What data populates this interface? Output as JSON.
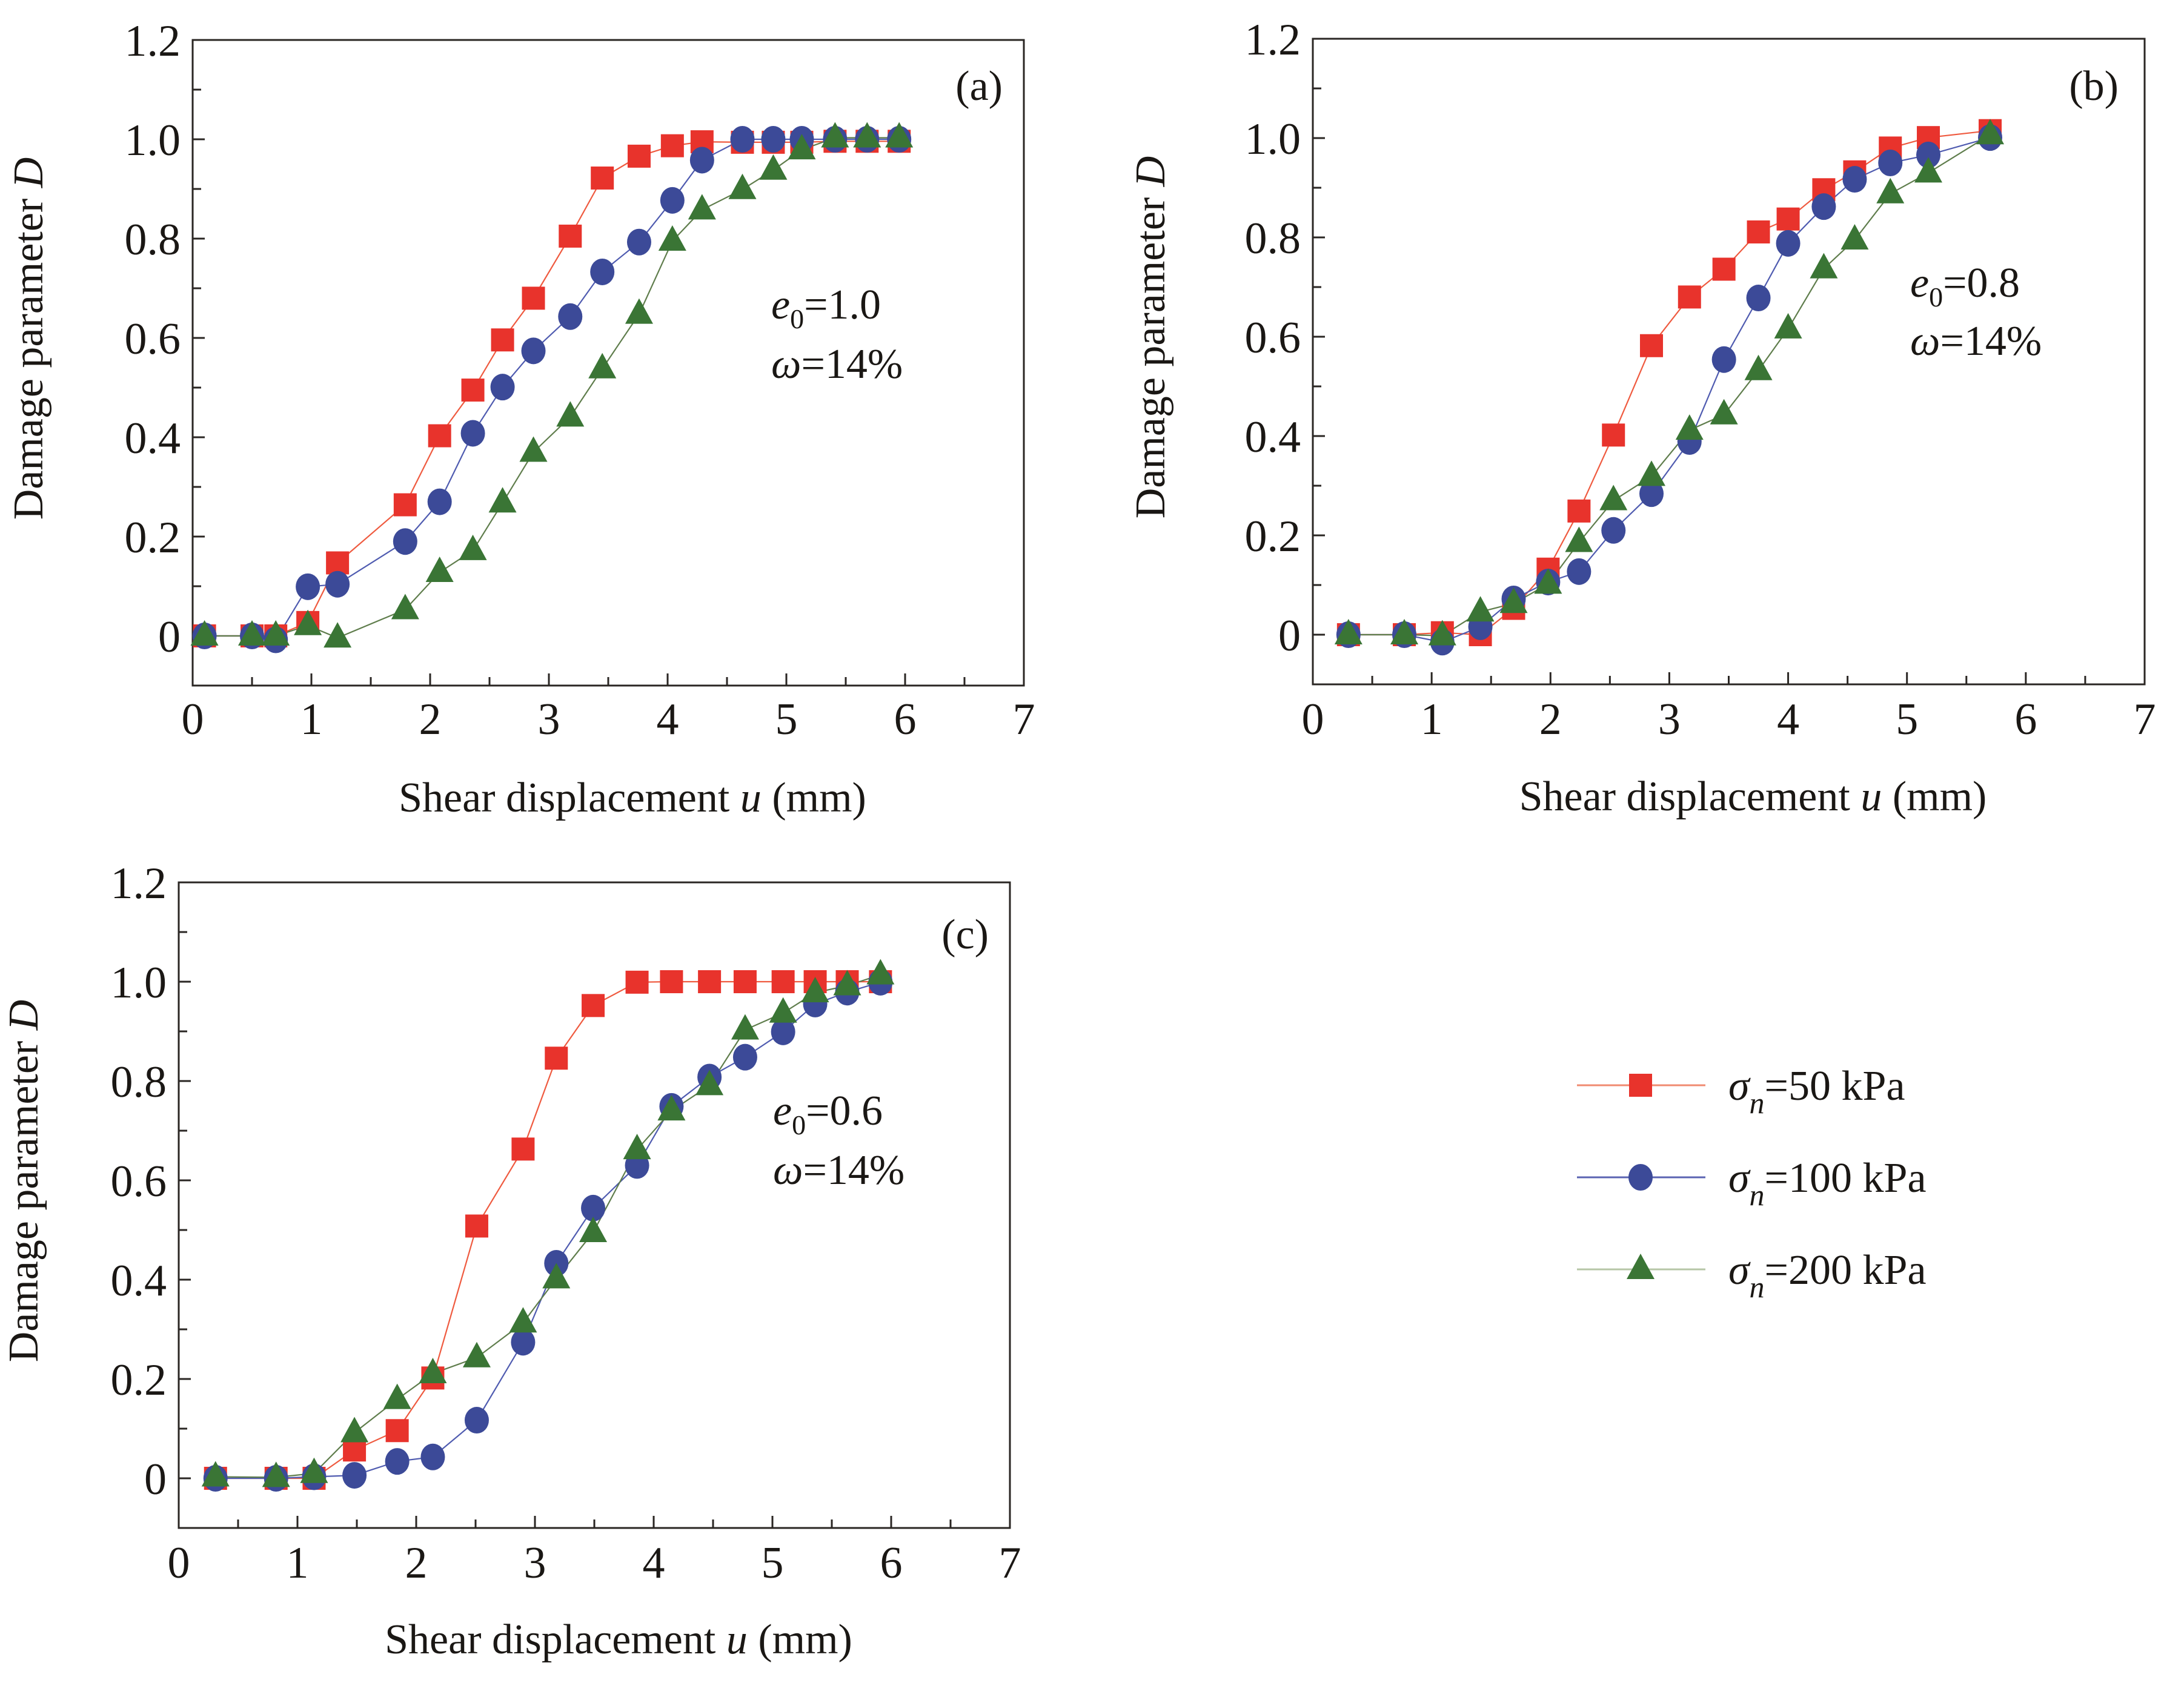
{
  "figure": {
    "series_styles": [
      {
        "key": "s50",
        "marker": "square",
        "color": "#e8332c",
        "line_color": "#ef5a3f",
        "legend_line_color": "#f08a70"
      },
      {
        "key": "s100",
        "marker": "circle",
        "color": "#3c4a98",
        "line_color": "#4f5bb0",
        "legend_line_color": "#5a63b2"
      },
      {
        "key": "s200",
        "marker": "triangle",
        "color": "#3a7535",
        "line_color": "#5f7d4c",
        "legend_line_color": "#b6c6a6"
      }
    ],
    "legend": {
      "placement": "bottom-right",
      "entries": [
        {
          "symbol": "σ",
          "subscript": "n",
          "rest": "=50 kPa"
        },
        {
          "symbol": "σ",
          "subscript": "n",
          "rest": "=100 kPa"
        },
        {
          "symbol": "σ",
          "subscript": "n",
          "rest": "=200 kPa"
        }
      ]
    }
  },
  "chart_data": [
    {
      "type": "line",
      "panel": "(a)",
      "title": "",
      "xlabel": "Shear displacement u (mm)",
      "xlabel_parts": {
        "pre": "Shear displacement ",
        "var": "u",
        "post": " (mm)"
      },
      "ylabel": "Damage parameter D",
      "ylabel_parts": {
        "pre": "Damage parameter ",
        "var": "D"
      },
      "xlim": [
        0,
        7
      ],
      "ylim": [
        -0.1,
        1.2
      ],
      "xticks": [
        "0",
        "1",
        "2",
        "3",
        "4",
        "5",
        "6",
        "7"
      ],
      "yticks": [
        {
          "v": 0,
          "label": "0"
        },
        {
          "v": 0.2,
          "label": "0.2"
        },
        {
          "v": 0.4,
          "label": "0.4"
        },
        {
          "v": 0.6,
          "label": "0.6"
        },
        {
          "v": 0.8,
          "label": "0.8"
        },
        {
          "v": 1.0,
          "label": "1.0"
        },
        {
          "v": 1.2,
          "label": "1.2"
        }
      ],
      "grid": false,
      "annotation": {
        "e_label": "e",
        "e_sub": "0",
        "e_rest": "=1.0",
        "w_label": "ω",
        "w_rest": "=14%"
      },
      "x": [
        0.1,
        0.5,
        0.7,
        0.97,
        1.22,
        1.79,
        2.08,
        2.36,
        2.61,
        2.87,
        3.18,
        3.45,
        3.76,
        4.04,
        4.29,
        4.63,
        4.89,
        5.13,
        5.41,
        5.68,
        5.95
      ],
      "series": [
        {
          "name": "σn=50 kPa",
          "values": [
            0,
            0,
            0,
            0.027,
            0.147,
            0.264,
            0.403,
            0.495,
            0.596,
            0.68,
            0.805,
            0.922,
            0.966,
            0.987,
            0.995,
            0.994,
            0.994,
            0.994,
            0.996,
            0.996,
            0.996
          ]
        },
        {
          "name": "σn=100 kPa",
          "values": [
            0,
            0,
            -0.008,
            0.099,
            0.104,
            0.19,
            0.27,
            0.408,
            0.501,
            0.574,
            0.643,
            0.733,
            0.793,
            0.877,
            0.958,
            1.0,
            1.0,
            1.0,
            1.0,
            1.0,
            1.0
          ]
        },
        {
          "name": "σn=200 kPa",
          "values": [
            0,
            0,
            0,
            0.021,
            -0.004,
            0.053,
            0.128,
            0.172,
            0.268,
            0.37,
            0.441,
            0.538,
            0.648,
            0.795,
            0.858,
            0.899,
            0.938,
            0.979,
            1.003,
            1.003,
            1.003
          ]
        }
      ]
    },
    {
      "type": "line",
      "panel": "(b)",
      "title": "",
      "xlabel": "Shear displacement u (mm)",
      "xlabel_parts": {
        "pre": "Shear displacement ",
        "var": "u",
        "post": " (mm)"
      },
      "ylabel": "Damage parameter D",
      "ylabel_parts": {
        "pre": "Damage parameter ",
        "var": "D"
      },
      "xlim": [
        0,
        7
      ],
      "ylim": [
        -0.1,
        1.2
      ],
      "xticks": [
        "0",
        "1",
        "2",
        "3",
        "4",
        "5",
        "6",
        "7"
      ],
      "yticks": [
        {
          "v": 0,
          "label": "0"
        },
        {
          "v": 0.2,
          "label": "0.2"
        },
        {
          "v": 0.4,
          "label": "0.4"
        },
        {
          "v": 0.6,
          "label": "0.6"
        },
        {
          "v": 0.8,
          "label": "0.8"
        },
        {
          "v": 1.0,
          "label": "1.0"
        },
        {
          "v": 1.2,
          "label": "1.2"
        }
      ],
      "grid": false,
      "annotation": {
        "e_label": "e",
        "e_sub": "0",
        "e_rest": "=0.8",
        "w_label": "ω",
        "w_rest": "=14%"
      },
      "x": [
        0.3,
        0.77,
        1.09,
        1.41,
        1.69,
        1.98,
        2.24,
        2.53,
        2.85,
        3.17,
        3.46,
        3.75,
        4.0,
        4.3,
        4.56,
        4.86,
        5.18,
        5.7
      ],
      "series": [
        {
          "name": "σn=50 kPa",
          "values": [
            0,
            0,
            0.004,
            0.0,
            0.053,
            0.132,
            0.249,
            0.402,
            0.582,
            0.68,
            0.736,
            0.811,
            0.837,
            0.896,
            0.932,
            0.98,
            1.001,
            1.015
          ]
        },
        {
          "name": "σn=100 kPa",
          "values": [
            0,
            0,
            -0.015,
            0.016,
            0.072,
            0.106,
            0.127,
            0.21,
            0.284,
            0.389,
            0.554,
            0.678,
            0.788,
            0.862,
            0.917,
            0.95,
            0.966,
            1.001
          ]
        },
        {
          "name": "σn=200 kPa",
          "values": [
            0,
            0,
            -0.002,
            0.046,
            0.063,
            0.102,
            0.186,
            0.27,
            0.319,
            0.412,
            0.443,
            0.532,
            0.616,
            0.737,
            0.795,
            0.888,
            0.93,
            1.007
          ]
        }
      ]
    },
    {
      "type": "line",
      "panel": "(c)",
      "title": "",
      "xlabel": "Shear displacement u (mm)",
      "xlabel_parts": {
        "pre": "Shear displacement ",
        "var": "u",
        "post": " (mm)"
      },
      "ylabel": "Damage parameter D",
      "ylabel_parts": {
        "pre": "Damage parameter ",
        "var": "D"
      },
      "xlim": [
        0,
        7
      ],
      "ylim": [
        -0.1,
        1.2
      ],
      "xticks": [
        "0",
        "1",
        "2",
        "3",
        "4",
        "5",
        "6",
        "7"
      ],
      "yticks": [
        {
          "v": 0,
          "label": "0"
        },
        {
          "v": 0.2,
          "label": "0.2"
        },
        {
          "v": 0.4,
          "label": "0.4"
        },
        {
          "v": 0.6,
          "label": "0.6"
        },
        {
          "v": 0.8,
          "label": "0.8"
        },
        {
          "v": 1.0,
          "label": "1.0"
        },
        {
          "v": 1.2,
          "label": "1.2"
        }
      ],
      "grid": false,
      "annotation": {
        "e_label": "e",
        "e_sub": "0",
        "e_rest": "=0.6",
        "w_label": "ω",
        "w_rest": "=14%"
      },
      "x": [
        0.31,
        0.82,
        1.14,
        1.48,
        1.84,
        2.14,
        2.51,
        2.9,
        3.18,
        3.49,
        3.86,
        4.15,
        4.47,
        4.77,
        5.09,
        5.36,
        5.63,
        5.91
      ],
      "series": [
        {
          "name": "σn=50 kPa",
          "values": [
            0,
            0,
            0,
            0.057,
            0.096,
            0.202,
            0.508,
            0.663,
            0.846,
            0.952,
            0.999,
            1.0,
            1.0,
            1.0,
            1.0,
            1.0,
            1.0,
            1.0
          ]
        },
        {
          "name": "σn=100 kPa",
          "values": [
            0,
            0,
            0.003,
            0.006,
            0.034,
            0.043,
            0.117,
            0.274,
            0.433,
            0.544,
            0.63,
            0.749,
            0.808,
            0.848,
            0.899,
            0.955,
            0.979,
            0.999
          ]
        },
        {
          "name": "σn=200 kPa",
          "values": [
            0.003,
            0.002,
            0.01,
            0.092,
            0.159,
            0.211,
            0.243,
            0.313,
            0.402,
            0.495,
            0.662,
            0.74,
            0.791,
            0.903,
            0.937,
            0.978,
            0.992,
            1.014
          ]
        }
      ]
    }
  ]
}
